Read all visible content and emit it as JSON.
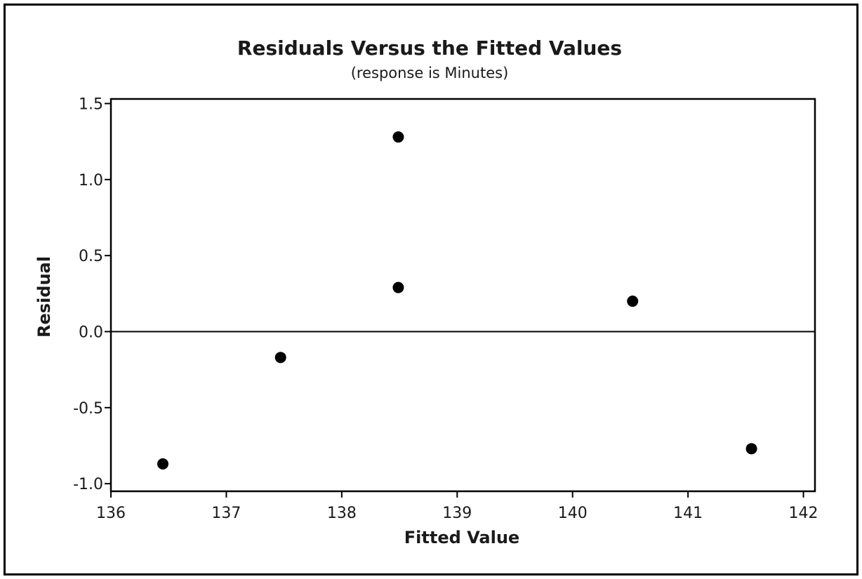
{
  "chart_data": {
    "type": "scatter",
    "title": "Residuals Versus the Fitted Values",
    "subtitle": "(response is Minutes)",
    "xlabel": "Fitted Value",
    "ylabel": "Residual",
    "xlim": [
      136,
      142.1
    ],
    "ylim": [
      -1.05,
      1.53
    ],
    "x_ticks": [
      136,
      137,
      138,
      139,
      140,
      141,
      142
    ],
    "x_tick_labels": [
      "136",
      "137",
      "138",
      "139",
      "140",
      "141",
      "142"
    ],
    "y_ticks": [
      -1.0,
      -0.5,
      0.0,
      0.5,
      1.0,
      1.5
    ],
    "y_tick_labels": [
      "-1.0",
      "-0.5",
      "0.0",
      "0.5",
      "1.0",
      "1.5"
    ],
    "reference_line_y": 0.0,
    "grid": false,
    "marker_color": "#000000",
    "series": [
      {
        "x": [
          136.45,
          137.47,
          138.49,
          138.49,
          140.52,
          141.55
        ],
        "y": [
          -0.87,
          -0.17,
          1.28,
          0.29,
          0.2,
          -0.77
        ]
      }
    ]
  }
}
